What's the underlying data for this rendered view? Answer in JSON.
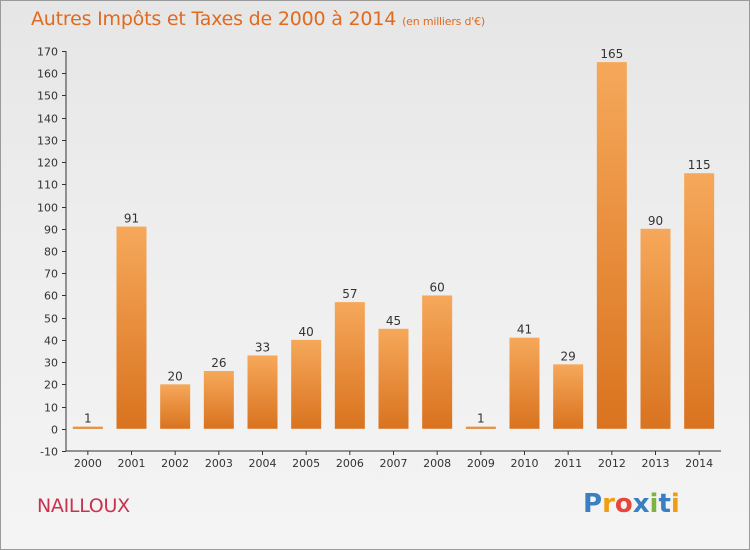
{
  "header": {
    "title": "Autres Impôts et Taxes de 2000 à 2014",
    "subtitle": "(en milliers d'€)"
  },
  "footer": {
    "city": "NAILLOUX",
    "logo_letters": [
      "P",
      "r",
      "o",
      "x",
      "i",
      "t",
      "i"
    ],
    "logo_colors": [
      "#3a7fc1",
      "#f39c12",
      "#e8463a",
      "#3a7fc1",
      "#7cb342",
      "#3a7fc1",
      "#f39c12"
    ]
  },
  "colors": {
    "title": "#e06a1e",
    "city": "#c8324d",
    "bar_top": "#f6a85a",
    "bar_bottom": "#d9731f",
    "axis": "#333333"
  },
  "chart_data": {
    "type": "bar",
    "title": "Autres Impôts et Taxes de 2000 à 2014",
    "subtitle": "(en milliers d'€)",
    "xlabel": "",
    "ylabel": "",
    "categories": [
      "2000",
      "2001",
      "2002",
      "2003",
      "2004",
      "2005",
      "2006",
      "2007",
      "2008",
      "2009",
      "2010",
      "2011",
      "2012",
      "2013",
      "2014"
    ],
    "values": [
      1,
      91,
      20,
      26,
      33,
      40,
      57,
      45,
      60,
      1,
      41,
      29,
      165,
      90,
      115
    ],
    "ylim": [
      -10,
      170
    ],
    "yticks": [
      -10,
      0,
      10,
      20,
      30,
      40,
      50,
      60,
      70,
      80,
      90,
      100,
      110,
      120,
      130,
      140,
      150,
      160,
      170
    ],
    "grid": false,
    "legend": "none"
  }
}
